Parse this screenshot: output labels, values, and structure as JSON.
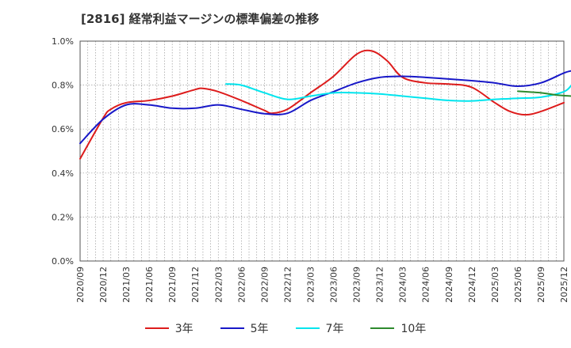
{
  "chart_data": {
    "type": "line",
    "title": "[2816]  経常利益マージンの標準偏差の推移",
    "xlabel": "",
    "ylabel": "",
    "ylim": [
      0,
      1.0
    ],
    "yticks": [
      "0.0%",
      "0.2%",
      "0.4%",
      "0.6%",
      "0.8%",
      "1.0%"
    ],
    "ytick_values": [
      0,
      0.2,
      0.4,
      0.6,
      0.8,
      1.0
    ],
    "x_start": "2020-09",
    "x_end": "2025-12",
    "xtick_labels": [
      "2020/09",
      "2020/12",
      "2021/03",
      "2021/06",
      "2021/09",
      "2021/12",
      "2022/03",
      "2022/06",
      "2022/09",
      "2022/12",
      "2023/03",
      "2023/06",
      "2023/09",
      "2023/12",
      "2024/03",
      "2024/06",
      "2024/09",
      "2024/12",
      "2025/03",
      "2025/06",
      "2025/09",
      "2025/12"
    ],
    "grid": true,
    "legend_position": "bottom",
    "series": [
      {
        "name": "3年",
        "color": "#dd1c1c",
        "points": [
          [
            "2020-09",
            0.465
          ],
          [
            "2020-12",
            0.65
          ],
          [
            "2021-01",
            0.69
          ],
          [
            "2021-03",
            0.72
          ],
          [
            "2021-06",
            0.73
          ],
          [
            "2021-09",
            0.75
          ],
          [
            "2021-12",
            0.78
          ],
          [
            "2022-01",
            0.785
          ],
          [
            "2022-03",
            0.77
          ],
          [
            "2022-06",
            0.73
          ],
          [
            "2022-09",
            0.685
          ],
          [
            "2022-10",
            0.672
          ],
          [
            "2022-12",
            0.69
          ],
          [
            "2023-03",
            0.765
          ],
          [
            "2023-06",
            0.84
          ],
          [
            "2023-09",
            0.94
          ],
          [
            "2023-11",
            0.955
          ],
          [
            "2024-01",
            0.91
          ],
          [
            "2024-03",
            0.835
          ],
          [
            "2024-06",
            0.81
          ],
          [
            "2024-09",
            0.805
          ],
          [
            "2024-12",
            0.79
          ],
          [
            "2025-03",
            0.72
          ],
          [
            "2025-05",
            0.68
          ],
          [
            "2025-07",
            0.665
          ],
          [
            "2025-09",
            0.68
          ],
          [
            "2025-12",
            0.72
          ]
        ]
      },
      {
        "name": "5年",
        "color": "#1818c8",
        "points": [
          [
            "2020-09",
            0.535
          ],
          [
            "2020-12",
            0.645
          ],
          [
            "2021-03",
            0.71
          ],
          [
            "2021-06",
            0.71
          ],
          [
            "2021-09",
            0.695
          ],
          [
            "2021-12",
            0.695
          ],
          [
            "2022-03",
            0.71
          ],
          [
            "2022-06",
            0.69
          ],
          [
            "2022-09",
            0.67
          ],
          [
            "2022-12",
            0.672
          ],
          [
            "2023-03",
            0.73
          ],
          [
            "2023-06",
            0.77
          ],
          [
            "2023-09",
            0.81
          ],
          [
            "2023-12",
            0.835
          ],
          [
            "2024-03",
            0.84
          ],
          [
            "2024-06",
            0.835
          ],
          [
            "2024-09",
            0.828
          ],
          [
            "2024-12",
            0.82
          ],
          [
            "2025-03",
            0.81
          ],
          [
            "2025-06",
            0.795
          ],
          [
            "2025-09",
            0.81
          ],
          [
            "2025-12",
            0.855
          ],
          [
            "2026-01",
            0.865
          ]
        ]
      },
      {
        "name": "7年",
        "color": "#00e5ee",
        "points": [
          [
            "2022-04",
            0.805
          ],
          [
            "2022-06",
            0.8
          ],
          [
            "2022-09",
            0.765
          ],
          [
            "2022-12",
            0.735
          ],
          [
            "2023-03",
            0.75
          ],
          [
            "2023-06",
            0.765
          ],
          [
            "2023-09",
            0.765
          ],
          [
            "2023-12",
            0.76
          ],
          [
            "2024-03",
            0.75
          ],
          [
            "2024-06",
            0.74
          ],
          [
            "2024-09",
            0.73
          ],
          [
            "2024-12",
            0.728
          ],
          [
            "2025-03",
            0.735
          ],
          [
            "2025-06",
            0.74
          ],
          [
            "2025-09",
            0.745
          ],
          [
            "2025-12",
            0.77
          ],
          [
            "2026-01",
            0.8
          ]
        ]
      },
      {
        "name": "10年",
        "color": "#2d8a2d",
        "points": [
          [
            "2025-06",
            0.772
          ],
          [
            "2025-09",
            0.765
          ],
          [
            "2025-11",
            0.755
          ],
          [
            "2026-01",
            0.75
          ]
        ]
      }
    ]
  }
}
